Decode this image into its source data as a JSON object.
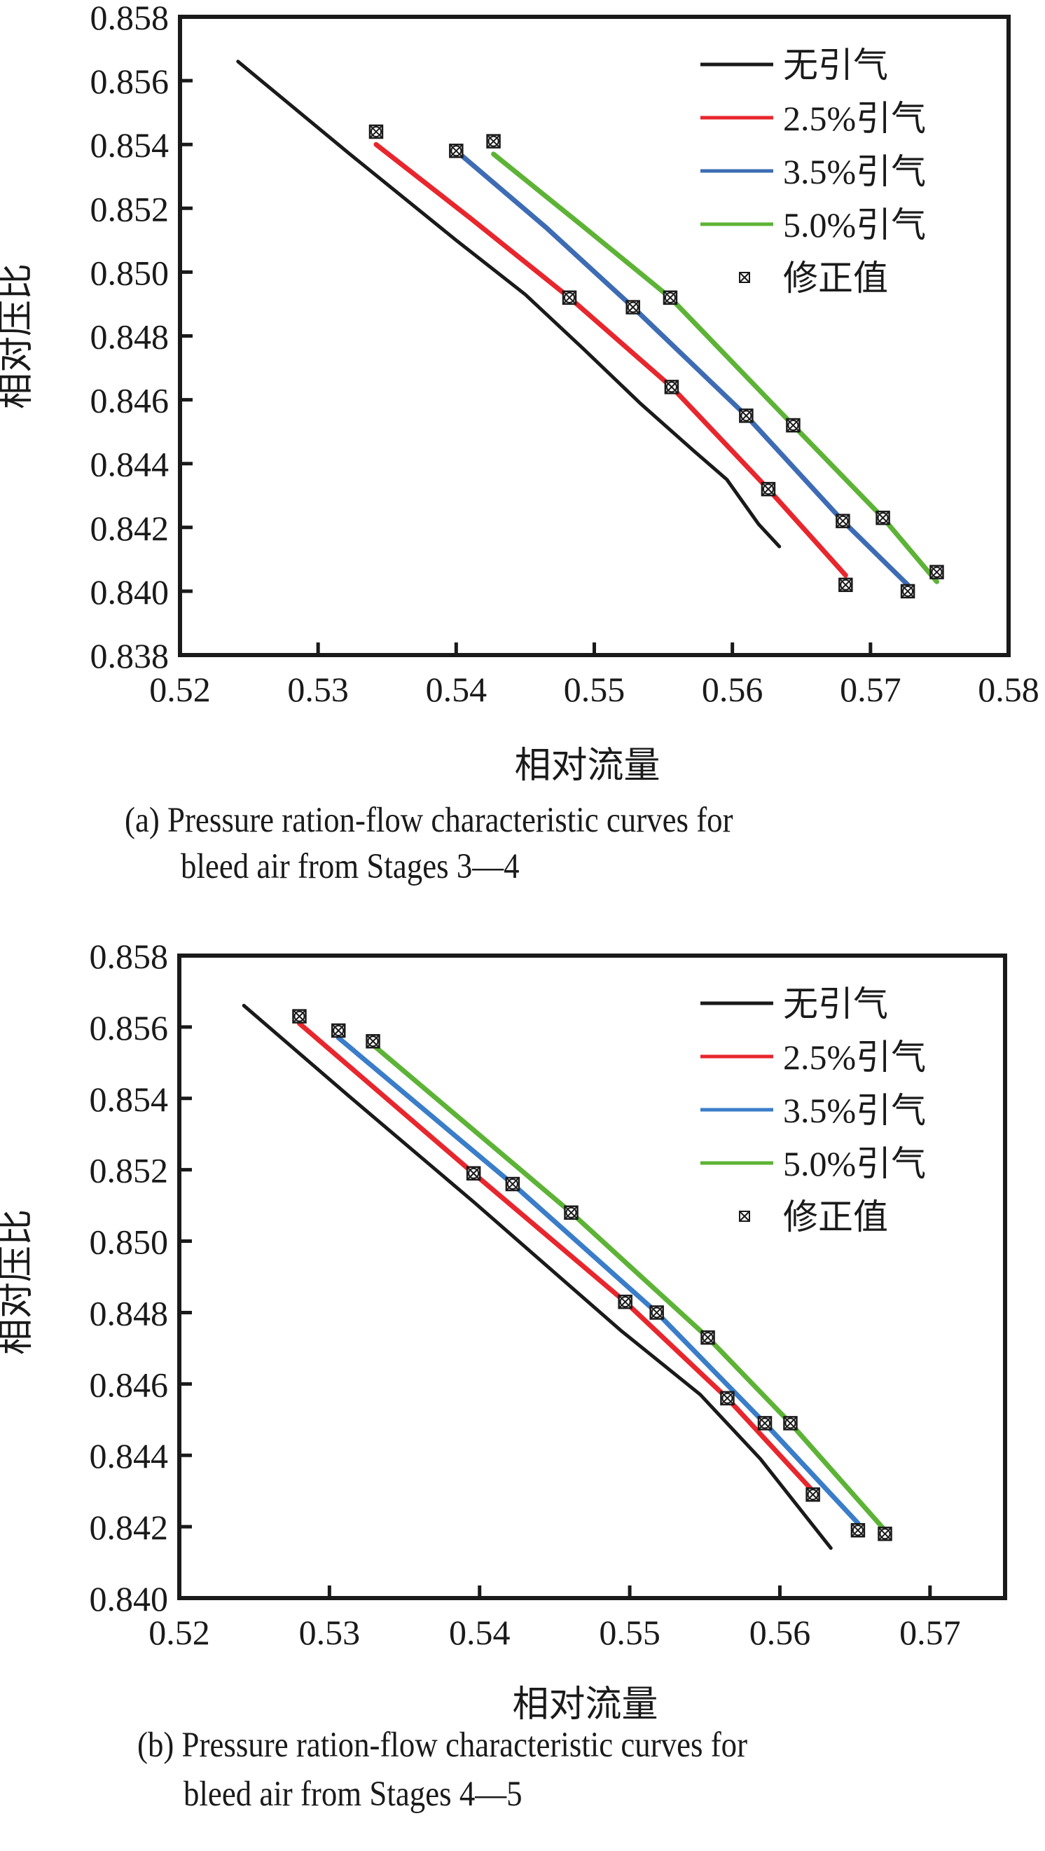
{
  "chart_data": [
    {
      "type": "line",
      "panel": "a",
      "caption_line1": "(a) Pressure ration-flow characteristic curves for",
      "caption_line2": "bleed air from Stages 3—4",
      "xlabel": "相对流量",
      "ylabel": "相对压比",
      "xlim": [
        0.52,
        0.58
      ],
      "ylim": [
        0.838,
        0.858
      ],
      "xticks": [
        "0.52",
        "0.53",
        "0.54",
        "0.55",
        "0.56",
        "0.57",
        "0.58"
      ],
      "yticks": [
        "0.838",
        "0.840",
        "0.842",
        "0.844",
        "0.846",
        "0.848",
        "0.850",
        "0.852",
        "0.854",
        "0.856",
        "0.858"
      ],
      "grid": false,
      "legend_position": "top-right",
      "series": [
        {
          "name": "无引气",
          "color": "#1a1a1a",
          "x": [
            0.5242,
            0.5323,
            0.54,
            0.545,
            0.5492,
            0.5533,
            0.5572,
            0.5596,
            0.5619,
            0.5634
          ],
          "y": [
            0.8566,
            0.8537,
            0.851,
            0.8493,
            0.8476,
            0.8459,
            0.8444,
            0.8435,
            0.8421,
            0.8414
          ]
        },
        {
          "name": "2.5%引气",
          "color": "#e8262d",
          "x": [
            0.5342,
            0.541,
            0.5482,
            0.5556,
            0.5626,
            0.5682
          ],
          "y": [
            0.854,
            0.8517,
            0.8492,
            0.8464,
            0.8432,
            0.8405
          ]
        },
        {
          "name": "3.5%引气",
          "color": "#3e6cb4",
          "x": [
            0.54,
            0.5465,
            0.5528,
            0.561,
            0.568,
            0.5727
          ],
          "y": [
            0.8538,
            0.8514,
            0.8489,
            0.8455,
            0.8422,
            0.8402
          ]
        },
        {
          "name": "5.0%引气",
          "color": "#5db336",
          "x": [
            0.5427,
            0.549,
            0.5555,
            0.5644,
            0.5709,
            0.5748
          ],
          "y": [
            0.8537,
            0.8515,
            0.8492,
            0.8452,
            0.8423,
            0.8403
          ]
        }
      ],
      "corrected_points": {
        "name": "修正值",
        "x": [
          0.5342,
          0.54,
          0.5427,
          0.5482,
          0.5528,
          0.5555,
          0.5556,
          0.561,
          0.5644,
          0.5626,
          0.568,
          0.5709,
          0.5682,
          0.5727,
          0.5748
        ],
        "y": [
          0.8544,
          0.8538,
          0.8541,
          0.8492,
          0.8489,
          0.8492,
          0.8464,
          0.8455,
          0.8452,
          0.8432,
          0.8422,
          0.8423,
          0.8402,
          0.84,
          0.8406
        ]
      }
    },
    {
      "type": "line",
      "panel": "b",
      "caption_line1": "(b) Pressure ration-flow characteristic curves for",
      "caption_line2": "bleed air from Stages 4—5",
      "xlabel": "相对流量",
      "ylabel": "相对压比",
      "xlim": [
        0.52,
        0.575
      ],
      "ylim": [
        0.84,
        0.858
      ],
      "xticks": [
        "0.52",
        "0.53",
        "0.54",
        "0.55",
        "0.56",
        "0.57"
      ],
      "yticks": [
        "0.840",
        "0.842",
        "0.844",
        "0.846",
        "0.848",
        "0.850",
        "0.852",
        "0.854",
        "0.856",
        "0.858"
      ],
      "grid": false,
      "legend_position": "top-right",
      "series": [
        {
          "name": "无引气",
          "color": "#1a1a1a",
          "x": [
            0.5243,
            0.5312,
            0.5396,
            0.5494,
            0.5547,
            0.5587,
            0.5634
          ],
          "y": [
            0.8566,
            0.8541,
            0.8511,
            0.8475,
            0.8457,
            0.8439,
            0.8414
          ]
        },
        {
          "name": "2.5%引气",
          "color": "#e8262d",
          "x": [
            0.528,
            0.5396,
            0.5497,
            0.5565,
            0.5622
          ],
          "y": [
            0.8561,
            0.8519,
            0.8483,
            0.8456,
            0.843
          ]
        },
        {
          "name": "3.5%引气",
          "color": "#3a7dc9",
          "x": [
            0.5306,
            0.5422,
            0.5518,
            0.559,
            0.5652
          ],
          "y": [
            0.8557,
            0.8516,
            0.848,
            0.8449,
            0.8421
          ]
        },
        {
          "name": "5.0%引气",
          "color": "#5db336",
          "x": [
            0.5329,
            0.5461,
            0.5552,
            0.5607,
            0.567
          ],
          "y": [
            0.8555,
            0.8508,
            0.8473,
            0.8449,
            0.8419
          ]
        }
      ],
      "corrected_points": {
        "name": "修正值",
        "x": [
          0.528,
          0.5306,
          0.5329,
          0.5396,
          0.5422,
          0.5461,
          0.5497,
          0.5518,
          0.5552,
          0.5565,
          0.559,
          0.5607,
          0.5622,
          0.5652,
          0.567
        ],
        "y": [
          0.8563,
          0.8559,
          0.8556,
          0.8519,
          0.8516,
          0.8508,
          0.8483,
          0.848,
          0.8473,
          0.8456,
          0.8449,
          0.8449,
          0.8429,
          0.8419,
          0.8418
        ]
      }
    }
  ]
}
